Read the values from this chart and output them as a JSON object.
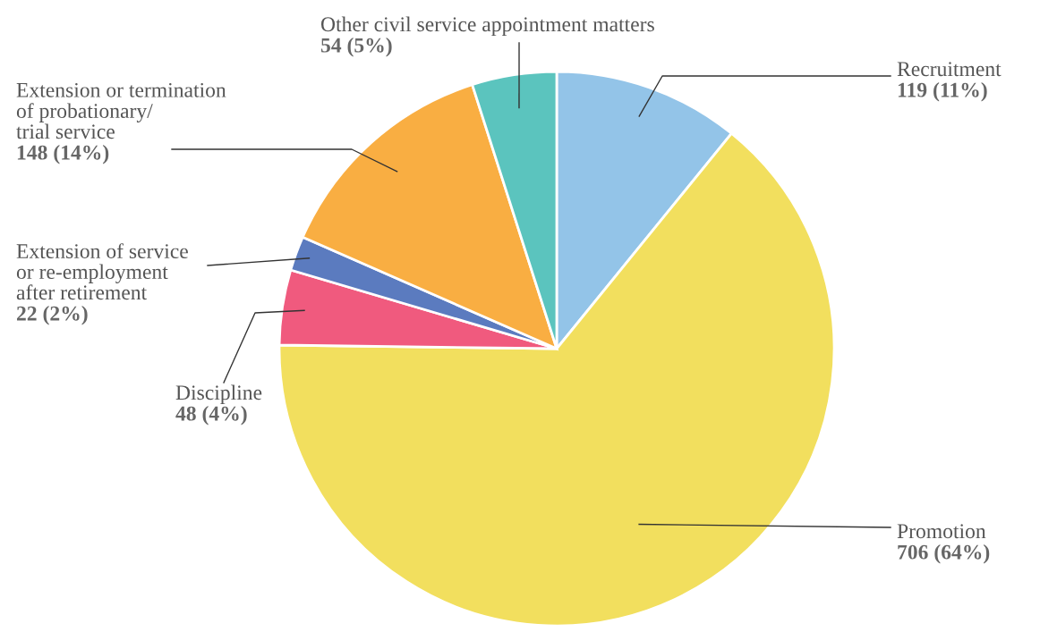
{
  "chart_data": {
    "type": "pie",
    "categories": [
      "Recruitment",
      "Promotion",
      "Discipline",
      "Extension of service\nor re-employment\nafter retirement",
      "Extension or termination\nof probationary/\ntrial service",
      "Other civil service appointment matters"
    ],
    "values": [
      119,
      706,
      48,
      22,
      148,
      54
    ],
    "value_labels": [
      "119 (11%)",
      "706 (64%)",
      "48 (4%)",
      "22 (2%)",
      "148 (14%)",
      "54 (5%)"
    ],
    "colors": [
      "#93c4e8",
      "#f2df5e",
      "#f05a7e",
      "#5b7bbf",
      "#f9ae42",
      "#5bc4be"
    ],
    "legend": false
  }
}
